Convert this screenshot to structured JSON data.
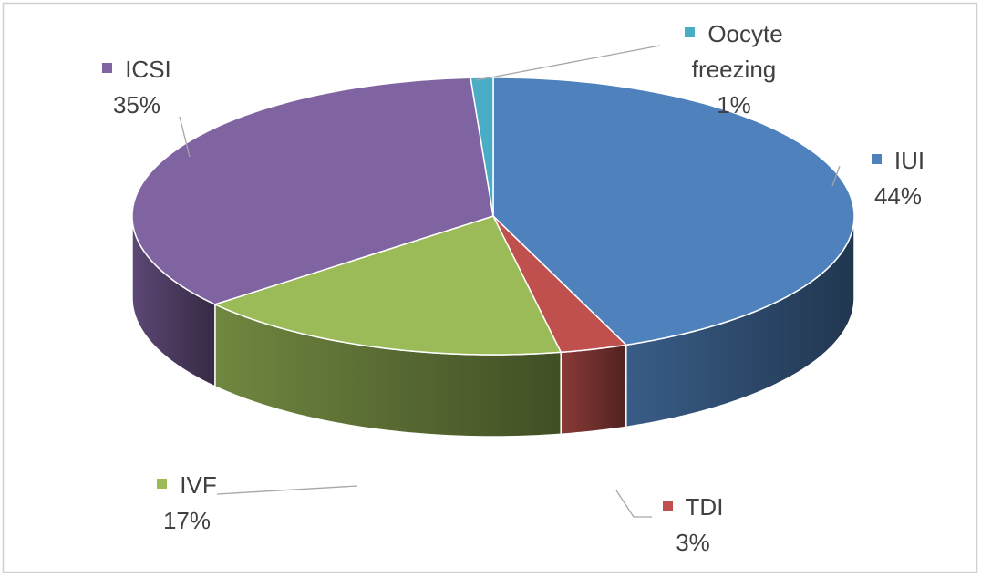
{
  "chart_data": {
    "type": "pie",
    "categories": [
      "IUI",
      "TDI",
      "IVF",
      "ICSI",
      "Oocyte freezing"
    ],
    "values": [
      44,
      3,
      17,
      35,
      1
    ],
    "value_labels": [
      "44%",
      "3%",
      "17%",
      "35%",
      "1%"
    ],
    "colors": [
      "#4f81bd",
      "#c0504d",
      "#9bbb59",
      "#8064a2",
      "#4bacc6"
    ]
  }
}
